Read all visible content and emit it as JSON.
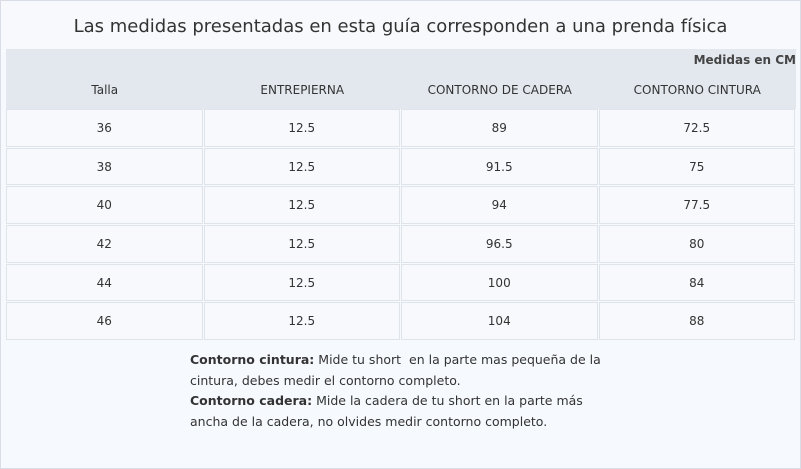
{
  "title": "Las medidas presentadas en esta guía corresponden a una prenda física",
  "units": "Medidas en CM",
  "table": {
    "headers": [
      "Talla",
      "ENTREPIERNA",
      "CONTORNO DE CADERA",
      "CONTORNO CINTURA"
    ],
    "rows": [
      [
        36,
        12.5,
        89,
        72.5
      ],
      [
        38,
        12.5,
        91.5,
        75
      ],
      [
        40,
        12.5,
        94,
        77.5
      ],
      [
        42,
        12.5,
        96.5,
        80
      ],
      [
        44,
        12.5,
        100,
        84
      ],
      [
        46,
        12.5,
        104,
        88
      ]
    ]
  },
  "notes": [
    {
      "label": "Contorno cintura:",
      "text": "Mide tu short  en la parte mas pequeña de la cintura, debes medir el contorno completo."
    },
    {
      "label": "Contorno cadera:",
      "text": "Mide la cadera de tu short en la parte más ancha de la cadera, no olvides medir contorno completo."
    }
  ]
}
